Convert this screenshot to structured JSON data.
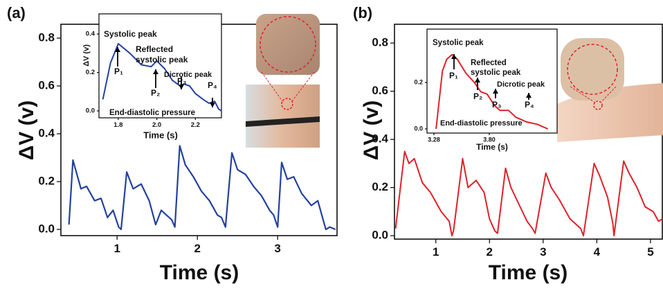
{
  "chart_data": [
    {
      "type": "line",
      "panel_label": "(a)",
      "xlabel": "Time (s)",
      "ylabel": "ΔV (v)",
      "xlim": [
        0.3,
        3.74
      ],
      "ylim": [
        -0.026,
        0.858
      ],
      "xticks": [
        1,
        2,
        3
      ],
      "yticks": [
        {
          "value": 0,
          "label": "0.0"
        },
        0.2,
        0.4,
        0.6,
        0.8
      ],
      "x": [
        0.4,
        0.45,
        0.55,
        0.62,
        0.72,
        0.8,
        0.88,
        0.95,
        1.02,
        1.05,
        1.12,
        1.2,
        1.3,
        1.4,
        1.48,
        1.55,
        1.68,
        1.72,
        1.78,
        1.85,
        1.95,
        2.05,
        2.15,
        2.25,
        2.3,
        2.35,
        2.43,
        2.5,
        2.6,
        2.7,
        2.8,
        2.9,
        2.95,
        3.0,
        3.05,
        3.12,
        3.2,
        3.3,
        3.42,
        3.5,
        3.55,
        3.6,
        3.65,
        3.72
      ],
      "series": [
        {
          "color": "#2340a0",
          "values": [
            0.02,
            0.29,
            0.17,
            0.18,
            0.12,
            0.13,
            0.05,
            0.08,
            0.01,
            0.0,
            0.24,
            0.17,
            0.19,
            0.12,
            0.02,
            0.08,
            0.04,
            0.01,
            0.35,
            0.27,
            0.22,
            0.16,
            0.12,
            0.06,
            0.05,
            0.01,
            0.32,
            0.25,
            0.23,
            0.18,
            0.14,
            0.08,
            0.06,
            0.01,
            0.28,
            0.21,
            0.22,
            0.15,
            0.1,
            0.12,
            0.06,
            0.0,
            0.01,
            0.0
          ]
        }
      ]
    },
    {
      "type": "line",
      "xlabel": "Time (s)",
      "ylabel": "ΔV (v)",
      "xlim": [
        1.7,
        2.335
      ],
      "ylim": [
        -0.036,
        0.505
      ],
      "xticks": [
        1.8,
        {
          "value": 2,
          "label": "2.0"
        },
        2.2
      ],
      "yticks": [
        {
          "value": 0,
          "label": "0.0"
        },
        0.2,
        0.4
      ],
      "x": [
        1.72,
        1.76,
        1.8,
        1.86,
        1.92,
        1.97,
        2.0,
        2.04,
        2.08,
        2.12,
        2.14,
        2.17,
        2.2,
        2.24,
        2.27,
        2.3,
        2.32,
        2.335
      ],
      "series": [
        {
          "color": "#2340a0",
          "values": [
            0.06,
            0.25,
            0.35,
            0.3,
            0.24,
            0.23,
            0.26,
            0.22,
            0.16,
            0.13,
            0.14,
            0.13,
            0.09,
            0.06,
            0.04,
            0.05,
            0.01,
            0.0
          ]
        }
      ],
      "annotations": [
        "Systolic peak",
        "P₁",
        "Reflected",
        "systolic peak",
        "P₂",
        "Dicrotic peak",
        "P₃",
        "P₄",
        "End-diastolic pressure"
      ]
    },
    {
      "type": "line",
      "panel_label": "(b)",
      "xlabel": "Time (s)",
      "ylabel": "ΔV (v)",
      "xlim": [
        0.23,
        5.22
      ],
      "ylim": [
        -0.014,
        0.878
      ],
      "xticks": [
        1,
        2,
        3,
        4,
        5
      ],
      "yticks": [
        {
          "value": 0,
          "label": "0.0"
        },
        0.2,
        0.4,
        0.6,
        0.8
      ],
      "x": [
        0.25,
        0.42,
        0.5,
        0.6,
        0.75,
        0.9,
        1.1,
        1.25,
        1.3,
        1.33,
        1.5,
        1.6,
        1.75,
        1.9,
        2.0,
        2.1,
        2.15,
        2.3,
        2.4,
        2.55,
        2.7,
        2.8,
        2.85,
        3.05,
        3.15,
        3.3,
        3.5,
        3.7,
        3.75,
        3.95,
        4.05,
        4.2,
        4.3,
        4.32,
        4.5,
        4.6,
        4.75,
        4.9,
        5.05,
        5.15,
        5.22
      ],
      "series": [
        {
          "color": "#e0202a",
          "values": [
            0.03,
            0.35,
            0.3,
            0.32,
            0.22,
            0.18,
            0.1,
            0.06,
            0.0,
            0.02,
            0.32,
            0.2,
            0.23,
            0.18,
            0.07,
            0.02,
            0.01,
            0.28,
            0.2,
            0.13,
            0.06,
            0.03,
            0.01,
            0.26,
            0.2,
            0.15,
            0.07,
            0.03,
            0.0,
            0.3,
            0.25,
            0.16,
            0.05,
            0.0,
            0.31,
            0.26,
            0.2,
            0.12,
            0.1,
            0.06,
            0.07
          ]
        }
      ]
    },
    {
      "type": "line",
      "xlabel": "Time (s)",
      "xlim": [
        3.215,
        4.437
      ],
      "ylim": [
        -0.018,
        0.43
      ],
      "xticks": [
        3.28,
        {
          "value": 3.8,
          "label": "3.80"
        }
      ],
      "yticks": [
        {
          "value": 0,
          "label": "0.0"
        },
        0.2
      ],
      "x": [
        3.3,
        3.36,
        3.4,
        3.45,
        3.5,
        3.58,
        3.62,
        3.66,
        3.72,
        3.78,
        3.85,
        3.9,
        3.98,
        4.05,
        4.15,
        4.25,
        4.35
      ],
      "series": [
        {
          "color": "#e0202a",
          "values": [
            0.0,
            0.25,
            0.3,
            0.32,
            0.3,
            0.24,
            0.22,
            0.2,
            0.16,
            0.15,
            0.1,
            0.08,
            0.08,
            0.05,
            0.03,
            0.02,
            0.0
          ]
        }
      ],
      "annotations": [
        "Systolic peak",
        "P₁",
        "Reflected",
        "systolic peak",
        "P₂",
        "Dicrotic peak",
        "P₃",
        "P₄",
        "End-diastolic pressure"
      ]
    }
  ]
}
